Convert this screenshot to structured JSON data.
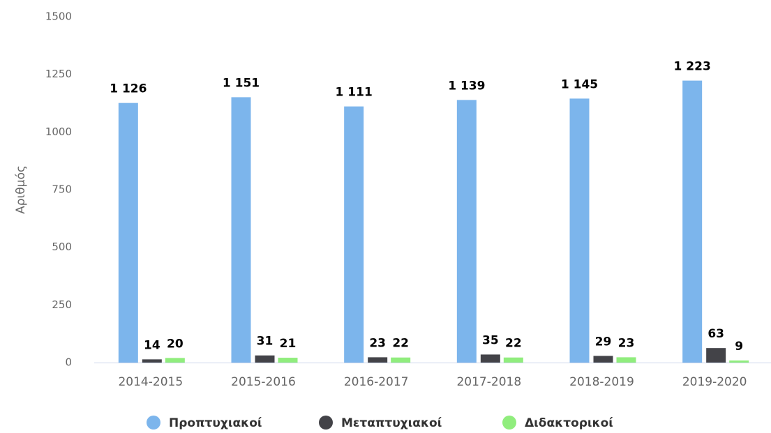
{
  "chart_data": {
    "type": "bar",
    "y_label": "Αριθμός",
    "categories": [
      "2014-2015",
      "2015-2016",
      "2016-2017",
      "2017-2018",
      "2018-2019",
      "2019-2020"
    ],
    "series": [
      {
        "name": "Προπτυχιακοί",
        "color": "#7cb5ec",
        "values": [
          1126,
          1151,
          1111,
          1139,
          1145,
          1223
        ],
        "value_labels": [
          "1 126",
          "1 151",
          "1 111",
          "1 139",
          "1 145",
          "1 223"
        ]
      },
      {
        "name": "Μεταπτυχιακοί",
        "color": "#434348",
        "values": [
          14,
          31,
          23,
          35,
          29,
          63
        ]
      },
      {
        "name": "Διδακτορικοί",
        "color": "#90ed7d",
        "values": [
          20,
          21,
          22,
          22,
          23,
          9
        ]
      }
    ],
    "ylim": [
      0,
      1500
    ],
    "yticks": [
      0,
      250,
      500,
      750,
      1000,
      1250,
      1500
    ],
    "grid": false
  }
}
